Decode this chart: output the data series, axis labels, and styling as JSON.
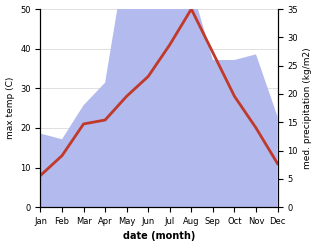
{
  "months": [
    "Jan",
    "Feb",
    "Mar",
    "Apr",
    "May",
    "Jun",
    "Jul",
    "Aug",
    "Sep",
    "Oct",
    "Nov",
    "Dec"
  ],
  "max_temp": [
    8,
    13,
    21,
    22,
    28,
    33,
    41,
    50,
    39,
    28,
    20,
    11
  ],
  "precipitation": [
    13,
    12,
    18,
    22,
    45,
    41,
    40,
    39,
    26,
    26,
    27,
    16
  ],
  "temp_color": "#c0392b",
  "precip_color_fill": "#b3baed",
  "left_ylabel": "max temp (C)",
  "right_ylabel": "med. precipitation (kg/m2)",
  "xlabel": "date (month)",
  "ylim_left": [
    0,
    50
  ],
  "ylim_right": [
    0,
    35
  ],
  "yticks_left": [
    0,
    10,
    20,
    30,
    40,
    50
  ],
  "yticks_right": [
    0,
    5,
    10,
    15,
    20,
    25,
    30,
    35
  ],
  "background_color": "#ffffff",
  "line_width": 2.0
}
